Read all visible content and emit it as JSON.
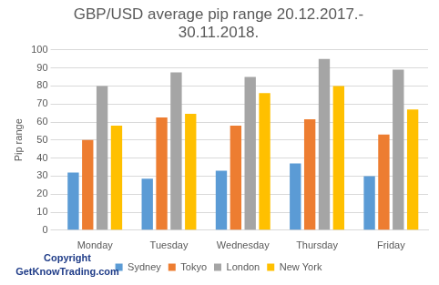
{
  "chart_data": {
    "type": "bar",
    "title": "GBP/USD average pip range 20.12.2017.-30.11.2018.",
    "y_label": "Pip range",
    "annotations": [
      "Copyright",
      "GetKnowTrading.com"
    ],
    "categories": [
      "Monday",
      "Tuesday",
      "Wednesday",
      "Thursday",
      "Friday"
    ],
    "series": [
      {
        "name": "Sydney",
        "color": "#5b9bd5",
        "values": [
          32,
          28.5,
          33,
          37,
          30
        ]
      },
      {
        "name": "Tokyo",
        "color": "#ed7d31",
        "values": [
          50,
          62.5,
          58,
          61.5,
          53
        ]
      },
      {
        "name": "London",
        "color": "#a5a5a5",
        "values": [
          80,
          87.5,
          85,
          95,
          89
        ]
      },
      {
        "name": "New York",
        "color": "#ffc000",
        "values": [
          58,
          64.5,
          76,
          80,
          67
        ]
      }
    ],
    "ylim": [
      0,
      100
    ],
    "yticks": [
      0,
      10,
      20,
      30,
      40,
      50,
      60,
      70,
      80,
      90,
      100
    ],
    "grid": true,
    "legend": "bottom"
  }
}
